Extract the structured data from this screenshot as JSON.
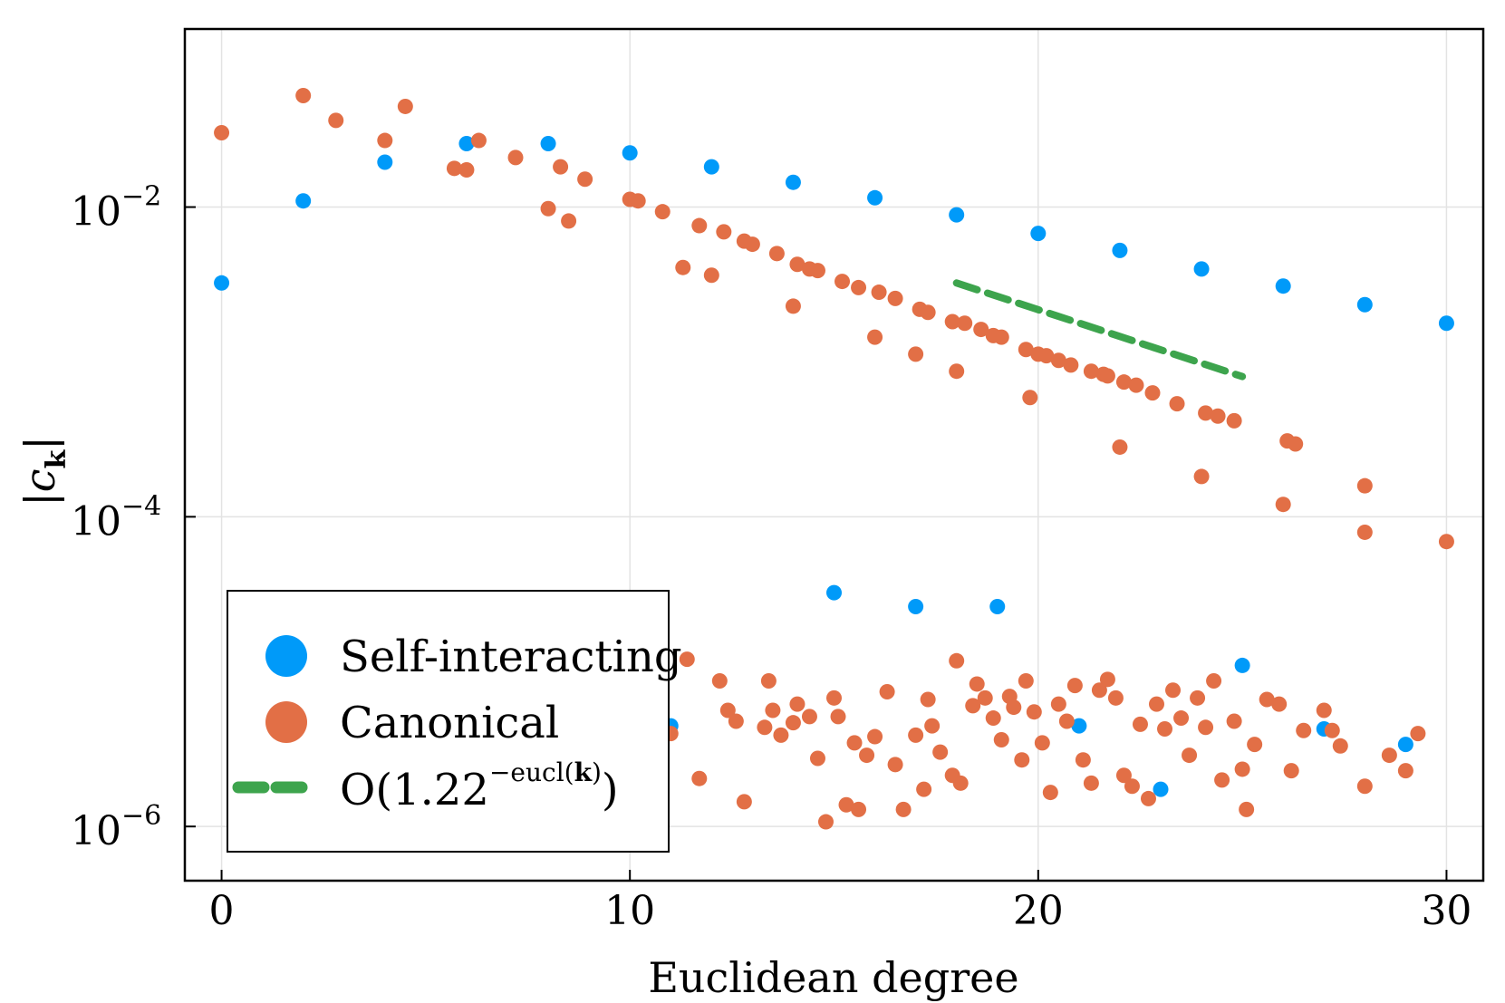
{
  "chart_data": {
    "type": "scatter",
    "title": "",
    "xlabel": "Euclidean degree",
    "ylabel": "|c",
    "ylabel_subscript": "k",
    "ylabel_close": "|",
    "yscale": "log10",
    "xlim": [
      -0.9,
      30.9
    ],
    "ylim_log10": [
      -6.35,
      -0.85
    ],
    "grid": true,
    "x_ticks": [
      {
        "value": 0,
        "label": "0"
      },
      {
        "value": 10,
        "label": "10"
      },
      {
        "value": 20,
        "label": "20"
      },
      {
        "value": 30,
        "label": "30"
      }
    ],
    "y_ticks": [
      {
        "value": -2,
        "base": "10",
        "exp": "−2"
      },
      {
        "value": -4,
        "base": "10",
        "exp": "−4"
      },
      {
        "value": -6,
        "base": "10",
        "exp": "−6"
      }
    ],
    "legend_position": "bottom-left",
    "series": [
      {
        "name": "Self-interacting",
        "kind": "scatter",
        "color": "#009af9",
        "points": [
          [
            0,
            -2.49
          ],
          [
            2,
            -1.96
          ],
          [
            4,
            -1.71
          ],
          [
            6,
            -1.59
          ],
          [
            8,
            -1.59
          ],
          [
            10,
            -1.65
          ],
          [
            12,
            -1.74
          ],
          [
            14,
            -1.84
          ],
          [
            16,
            -1.94
          ],
          [
            18,
            -2.05
          ],
          [
            20,
            -2.17
          ],
          [
            22,
            -2.28
          ],
          [
            24,
            -2.4
          ],
          [
            26,
            -2.51
          ],
          [
            28,
            -2.63
          ],
          [
            30,
            -2.75
          ],
          [
            15,
            -4.49
          ],
          [
            17,
            -4.58
          ],
          [
            19,
            -4.58
          ],
          [
            25,
            -4.96
          ],
          [
            21,
            -5.35
          ],
          [
            11,
            -5.35
          ],
          [
            27,
            -5.37
          ],
          [
            29,
            -5.47
          ],
          [
            23,
            -5.76
          ]
        ]
      },
      {
        "name": "Canonical",
        "kind": "scatter",
        "color": "#e26f46",
        "points": [
          [
            0,
            -1.52
          ],
          [
            2,
            -1.28
          ],
          [
            2.8,
            -1.44
          ],
          [
            4,
            -1.57
          ],
          [
            4.5,
            -1.35
          ],
          [
            6.3,
            -1.57
          ],
          [
            5.7,
            -1.75
          ],
          [
            6,
            -1.76
          ],
          [
            7.2,
            -1.68
          ],
          [
            8,
            -2.01
          ],
          [
            8.5,
            -2.09
          ],
          [
            8.3,
            -1.74
          ],
          [
            8.9,
            -1.82
          ],
          [
            10,
            -1.95
          ],
          [
            10.2,
            -1.96
          ],
          [
            10.8,
            -2.03
          ],
          [
            11.3,
            -2.39
          ],
          [
            11.7,
            -2.12
          ],
          [
            12,
            -2.44
          ],
          [
            12.3,
            -2.16
          ],
          [
            12.8,
            -2.22
          ],
          [
            13,
            -2.24
          ],
          [
            13.6,
            -2.3
          ],
          [
            14,
            -2.64
          ],
          [
            14.1,
            -2.37
          ],
          [
            14.4,
            -2.4
          ],
          [
            14.6,
            -2.41
          ],
          [
            15.2,
            -2.48
          ],
          [
            15.6,
            -2.52
          ],
          [
            16,
            -2.84
          ],
          [
            16.1,
            -2.55
          ],
          [
            16.5,
            -2.59
          ],
          [
            17,
            -2.95
          ],
          [
            17.1,
            -2.66
          ],
          [
            17.3,
            -2.68
          ],
          [
            18,
            -3.06
          ],
          [
            17.9,
            -2.74
          ],
          [
            18.2,
            -2.75
          ],
          [
            18.6,
            -2.79
          ],
          [
            18.9,
            -2.83
          ],
          [
            19.1,
            -2.84
          ],
          [
            19.8,
            -3.23
          ],
          [
            19.7,
            -2.92
          ],
          [
            20.0,
            -2.95
          ],
          [
            20.2,
            -2.96
          ],
          [
            20.5,
            -2.99
          ],
          [
            20.8,
            -3.02
          ],
          [
            21.3,
            -3.06
          ],
          [
            21.6,
            -3.08
          ],
          [
            21.7,
            -3.09
          ],
          [
            22,
            -3.55
          ],
          [
            22.1,
            -3.13
          ],
          [
            22.4,
            -3.15
          ],
          [
            22.8,
            -3.2
          ],
          [
            23.4,
            -3.27
          ],
          [
            24,
            -3.74
          ],
          [
            24.1,
            -3.33
          ],
          [
            24.4,
            -3.35
          ],
          [
            24.8,
            -3.38
          ],
          [
            26,
            -3.92
          ],
          [
            26.1,
            -3.51
          ],
          [
            26.3,
            -3.53
          ],
          [
            28,
            -4.1
          ],
          [
            28,
            -3.8
          ],
          [
            30,
            -4.16
          ]
        ]
      },
      {
        "name": "Canonical-noise-floor",
        "legend": false,
        "kind": "scatter",
        "color": "#e26f46",
        "points": [
          [
            4.2,
            -5.98
          ],
          [
            11,
            -5.4
          ],
          [
            11.4,
            -4.92
          ],
          [
            11.7,
            -5.69
          ],
          [
            12.2,
            -5.06
          ],
          [
            12.4,
            -5.25
          ],
          [
            12.6,
            -5.32
          ],
          [
            12.8,
            -5.84
          ],
          [
            13.3,
            -5.36
          ],
          [
            13.4,
            -5.06
          ],
          [
            13.5,
            -5.25
          ],
          [
            13.7,
            -5.41
          ],
          [
            14,
            -5.33
          ],
          [
            14.1,
            -5.21
          ],
          [
            14.6,
            -5.56
          ],
          [
            14.4,
            -5.29
          ],
          [
            14.8,
            -5.97
          ],
          [
            15,
            -5.17
          ],
          [
            15.1,
            -5.29
          ],
          [
            15.3,
            -5.86
          ],
          [
            15.5,
            -5.46
          ],
          [
            15.6,
            -5.89
          ],
          [
            15.8,
            -5.54
          ],
          [
            16,
            -5.42
          ],
          [
            16.3,
            -5.13
          ],
          [
            16.5,
            -5.6
          ],
          [
            16.7,
            -5.89
          ],
          [
            17.0,
            -5.41
          ],
          [
            17.2,
            -5.76
          ],
          [
            17.3,
            -5.18
          ],
          [
            17.4,
            -5.35
          ],
          [
            17.6,
            -5.52
          ],
          [
            17.9,
            -5.67
          ],
          [
            18.0,
            -4.93
          ],
          [
            18.1,
            -5.72
          ],
          [
            18.4,
            -5.22
          ],
          [
            18.5,
            -5.08
          ],
          [
            18.7,
            -5.17
          ],
          [
            18.9,
            -5.3
          ],
          [
            19.1,
            -5.44
          ],
          [
            19.3,
            -5.16
          ],
          [
            19.4,
            -5.23
          ],
          [
            19.6,
            -5.57
          ],
          [
            19.7,
            -5.06
          ],
          [
            19.9,
            -5.26
          ],
          [
            20.1,
            -5.46
          ],
          [
            20.3,
            -5.78
          ],
          [
            20.5,
            -5.21
          ],
          [
            20.7,
            -5.32
          ],
          [
            20.9,
            -5.09
          ],
          [
            21.1,
            -5.57
          ],
          [
            21.3,
            -5.72
          ],
          [
            21.5,
            -5.12
          ],
          [
            21.7,
            -5.05
          ],
          [
            21.9,
            -5.17
          ],
          [
            22.1,
            -5.67
          ],
          [
            22.3,
            -5.74
          ],
          [
            22.5,
            -5.34
          ],
          [
            22.7,
            -5.82
          ],
          [
            22.9,
            -5.21
          ],
          [
            23.1,
            -5.37
          ],
          [
            23.3,
            -5.12
          ],
          [
            23.5,
            -5.3
          ],
          [
            23.7,
            -5.54
          ],
          [
            23.9,
            -5.17
          ],
          [
            24.1,
            -5.36
          ],
          [
            24.3,
            -5.06
          ],
          [
            24.5,
            -5.7
          ],
          [
            24.8,
            -5.32
          ],
          [
            25.0,
            -5.63
          ],
          [
            25.1,
            -5.89
          ],
          [
            25.3,
            -5.47
          ],
          [
            25.6,
            -5.18
          ],
          [
            25.9,
            -5.21
          ],
          [
            26.2,
            -5.64
          ],
          [
            26.5,
            -5.38
          ],
          [
            27.0,
            -5.25
          ],
          [
            27.2,
            -5.38
          ],
          [
            27.4,
            -5.48
          ],
          [
            28,
            -5.74
          ],
          [
            28.6,
            -5.54
          ],
          [
            29,
            -5.64
          ],
          [
            29.3,
            -5.4
          ]
        ]
      },
      {
        "name": "O(1.22^-eucl(k))",
        "kind": "line",
        "dashed": true,
        "color": "#3da44d",
        "x_range": [
          18,
          25
        ],
        "y_start_log10": -2.49,
        "base": 1.22
      }
    ],
    "legend": [
      {
        "label": "Self-interacting",
        "marker": "circle",
        "color": "#009af9"
      },
      {
        "label": "Canonical",
        "marker": "circle",
        "color": "#e26f46"
      },
      {
        "label_prefix": "O(1.22",
        "label_sup": "−eucl(",
        "label_sup_bold": "k",
        "label_sup_close": ")",
        "label_suffix": ")",
        "marker": "dashed-line",
        "color": "#3da44d"
      }
    ]
  }
}
